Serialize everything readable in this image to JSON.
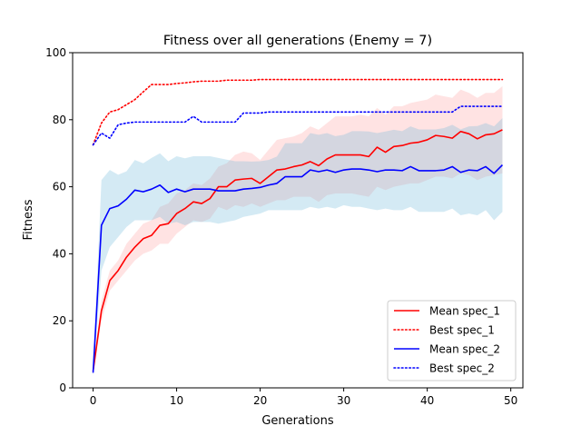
{
  "chart_data": {
    "type": "line",
    "title": "Fitness over all generations (Enemy = 7)",
    "xlabel": "Generations",
    "ylabel": "Fitness",
    "xlim": [
      -2.45,
      51.45
    ],
    "ylim": [
      0,
      100
    ],
    "xticks": [
      0,
      10,
      20,
      30,
      40,
      50
    ],
    "yticks": [
      0,
      20,
      40,
      60,
      80,
      100
    ],
    "grid": false,
    "legend_position": "lower-right",
    "x": [
      0,
      1,
      2,
      3,
      4,
      5,
      6,
      7,
      8,
      9,
      10,
      11,
      12,
      13,
      14,
      15,
      16,
      17,
      18,
      19,
      20,
      21,
      22,
      23,
      24,
      25,
      26,
      27,
      28,
      29,
      30,
      31,
      32,
      33,
      34,
      35,
      36,
      37,
      38,
      39,
      40,
      41,
      42,
      43,
      44,
      45,
      46,
      47,
      48,
      49
    ],
    "series": [
      {
        "name": "Mean spec_1",
        "color": "#ff0000",
        "style": "solid",
        "values": [
          5,
          23,
          32,
          35,
          39,
          42,
          44.5,
          45.5,
          48.5,
          49,
          52,
          53.5,
          55.5,
          55,
          56.5,
          60,
          60,
          62,
          62.3,
          62.5,
          61,
          63,
          65,
          65.3,
          66,
          66.5,
          67.5,
          66.3,
          68.3,
          69.5,
          69.5,
          69.5,
          69.5,
          69,
          71.8,
          70.3,
          72,
          72.3,
          73,
          73.3,
          74,
          75.3,
          75,
          74.5,
          76.5,
          75.8,
          74.3,
          75.5,
          75.8,
          77
        ],
        "band_lower": [
          4,
          20,
          29,
          32,
          35,
          38,
          40,
          41,
          43,
          43,
          46,
          48,
          50,
          49.5,
          50.5,
          54,
          53,
          54.5,
          54,
          55,
          54,
          55,
          56,
          56,
          57,
          57,
          57,
          55.5,
          57.5,
          58,
          58,
          58,
          57.5,
          57,
          60,
          59,
          60,
          60.5,
          61,
          61,
          62,
          63,
          63,
          62.5,
          64,
          63.5,
          62,
          63,
          63.5,
          64
        ],
        "band_upper": [
          6,
          26,
          35,
          38,
          43,
          46,
          49,
          50,
          54,
          55,
          58,
          59,
          61,
          60.5,
          62.5,
          66,
          67,
          69.5,
          70.5,
          70,
          68,
          71,
          74,
          74.5,
          75,
          76,
          78,
          77,
          79,
          81,
          81,
          81,
          81.5,
          81,
          83.5,
          81.5,
          84,
          84,
          85,
          85.5,
          86,
          87.5,
          87,
          86.5,
          89,
          88,
          86.5,
          88,
          88,
          90
        ]
      },
      {
        "name": "Best spec_1",
        "color": "#ff0000",
        "style": "dotted",
        "values": [
          72.5,
          79,
          82.3,
          83,
          84.5,
          86,
          88.3,
          90.5,
          90.5,
          90.5,
          90.8,
          91,
          91.3,
          91.5,
          91.5,
          91.5,
          91.8,
          91.8,
          91.8,
          91.8,
          92,
          92,
          92,
          92,
          92,
          92,
          92,
          92,
          92,
          92,
          92,
          92,
          92,
          92,
          92,
          92,
          92,
          92,
          92,
          92,
          92,
          92,
          92,
          92,
          92,
          92,
          92,
          92,
          92,
          92
        ]
      },
      {
        "name": "Mean spec_2",
        "color": "#0000ff",
        "style": "solid",
        "values": [
          4.5,
          48.5,
          53.5,
          54.3,
          56.3,
          59,
          58.5,
          59.3,
          60.5,
          58.3,
          59.3,
          58.5,
          59.3,
          59.3,
          59.3,
          58.8,
          58.8,
          58.8,
          59.3,
          59.5,
          59.8,
          60.5,
          61,
          63,
          63,
          63,
          65,
          64.5,
          65,
          64.3,
          65,
          65.3,
          65.3,
          65,
          64.5,
          65,
          65,
          64.8,
          66,
          64.8,
          64.8,
          64.8,
          65,
          66,
          64.3,
          65,
          64.8,
          66,
          64,
          66.5
        ],
        "band_lower": [
          3.5,
          35,
          42,
          45,
          48,
          50,
          50,
          50,
          51,
          49,
          49.5,
          48.5,
          49.5,
          49.5,
          49.5,
          49,
          49.5,
          50,
          51,
          51.5,
          52,
          53,
          53,
          53,
          53,
          53,
          54,
          53.5,
          54,
          53.5,
          54.5,
          54,
          54,
          53.5,
          53,
          53.5,
          53,
          53,
          54,
          52.5,
          52.5,
          52.5,
          52.5,
          53.5,
          51.5,
          52,
          51.5,
          53,
          50,
          52.5
        ],
        "band_upper": [
          5.5,
          62,
          65,
          63.6,
          64.6,
          68,
          67,
          68.6,
          70,
          67.6,
          69.1,
          68.5,
          69.1,
          69.1,
          69.1,
          68.6,
          68.1,
          67.6,
          67.6,
          67.5,
          67.6,
          68,
          69,
          73,
          73,
          73,
          76,
          75.5,
          76,
          75.1,
          75.5,
          76.6,
          76.6,
          76.5,
          76,
          76.5,
          77,
          76.6,
          78,
          77.1,
          77.1,
          77.1,
          77.5,
          78.5,
          77.1,
          78,
          78.1,
          79,
          78,
          80.5
        ]
      },
      {
        "name": "Best spec_2",
        "color": "#0000ff",
        "style": "dotted",
        "values": [
          72.5,
          76,
          74.5,
          78.5,
          79,
          79.3,
          79.3,
          79.3,
          79.3,
          79.3,
          79.3,
          79.3,
          81,
          79.3,
          79.3,
          79.3,
          79.3,
          79.3,
          82,
          82,
          82,
          82.3,
          82.3,
          82.3,
          82.3,
          82.3,
          82.3,
          82.3,
          82.3,
          82.3,
          82.3,
          82.3,
          82.3,
          82.3,
          82.3,
          82.3,
          82.3,
          82.3,
          82.3,
          82.3,
          82.3,
          82.3,
          82.3,
          82.3,
          84,
          84,
          84,
          84,
          84,
          84
        ]
      }
    ]
  }
}
